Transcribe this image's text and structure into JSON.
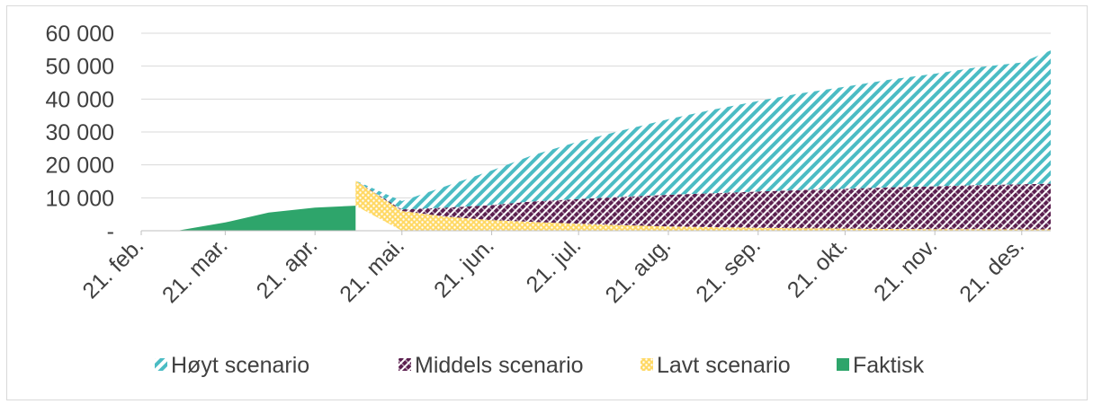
{
  "chart_data": {
    "type": "area",
    "stacked": true,
    "title": "",
    "xlabel": "",
    "ylabel": "",
    "ylim": [
      0,
      60000
    ],
    "yticks": [
      0,
      10000,
      20000,
      30000,
      40000,
      50000,
      60000
    ],
    "ytick_labels": [
      "-",
      "10 000",
      "20 000",
      "30 000",
      "40 000",
      "50 000",
      "60 000"
    ],
    "x": [
      "2020-02-21",
      "2020-03-05",
      "2020-03-21",
      "2020-04-05",
      "2020-04-21",
      "2020-05-05",
      "2020-05-21",
      "2020-06-05",
      "2020-06-21",
      "2020-07-05",
      "2020-07-21",
      "2020-08-05",
      "2020-08-21",
      "2020-09-05",
      "2020-09-21",
      "2020-10-05",
      "2020-10-21",
      "2020-11-05",
      "2020-11-21",
      "2020-12-05",
      "2020-12-21",
      "2020-12-31"
    ],
    "xticks": [
      "21. feb.",
      "21. mar.",
      "21. apr.",
      "21. mai.",
      "21. jun.",
      "21. jul.",
      "21. aug.",
      "21. sep.",
      "21. okt.",
      "21. nov.",
      "21. des."
    ],
    "series": [
      {
        "name": "Faktisk",
        "color": "#2ea56b",
        "pattern": "solid",
        "values": [
          0,
          100,
          2500,
          5500,
          7000,
          7600,
          null,
          null,
          null,
          null,
          null,
          null,
          null,
          null,
          null,
          null,
          null,
          null,
          null,
          null,
          null,
          null
        ]
      },
      {
        "name": "Lavt scenario",
        "color": "#ffd966",
        "pattern": "dots",
        "values": [
          null,
          null,
          null,
          null,
          null,
          7600,
          6000,
          4300,
          3200,
          2700,
          2100,
          1700,
          1300,
          1100,
          900,
          750,
          650,
          550,
          500,
          450,
          420,
          400
        ]
      },
      {
        "name": "Middels scenario",
        "color": "#5b1f4f",
        "pattern": "crosshatch",
        "values": [
          null,
          null,
          null,
          null,
          null,
          0,
          500,
          2700,
          4600,
          6200,
          7500,
          8600,
          9600,
          10300,
          11000,
          11600,
          12100,
          12600,
          13000,
          13400,
          13700,
          13900
        ]
      },
      {
        "name": "Høyt scenario",
        "color": "#4bbcc4",
        "pattern": "diagonal",
        "values": [
          null,
          null,
          null,
          null,
          null,
          0,
          2500,
          6500,
          10500,
          14000,
          17500,
          20200,
          23000,
          25300,
          27500,
          29300,
          31000,
          32700,
          34200,
          35700,
          37000,
          40500
        ]
      }
    ],
    "legend_order": [
      "Høyt scenario",
      "Middels scenario",
      "Lavt scenario",
      "Faktisk"
    ],
    "legend_position": "bottom",
    "grid": {
      "y": true,
      "x": false
    }
  }
}
